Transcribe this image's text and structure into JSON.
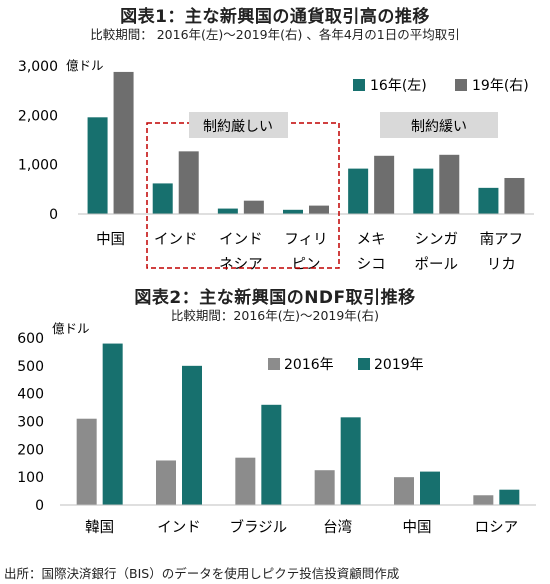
{
  "figure1": {
    "title": "図表1：主な新興国の通貨取引高の推移",
    "subtitle": "比較期間： 2016年(左)～2019年(右) 、各年4月の1日の平均取引",
    "unit": "億ドル",
    "callouts": {
      "strict": "制約厳しい",
      "loose": "制約緩い"
    }
  },
  "figure2": {
    "title": "図表2：主な新興国のNDF取引推移",
    "subtitle": "比較期間：2016年(左)～2019年(右)",
    "unit": "億ドル"
  },
  "source": "出所：国際決済銀行（BIS）のデータを使用しピクテ投信投資顧問作成",
  "colors": {
    "teal": "#17706E",
    "gray": "#8C8C8C",
    "darkgray": "#6E6E6E",
    "callout_bg": "#D9D9D9",
    "callout_border": "#C00000"
  },
  "chart_data": [
    {
      "type": "bar",
      "categories": [
        "中国",
        "インド",
        "インドネシア",
        "フィリピン",
        "メキシコ",
        "シンガポール",
        "南アフリカ"
      ],
      "category_lines": [
        [
          "中国"
        ],
        [
          "インド"
        ],
        [
          "インド",
          "ネシア"
        ],
        [
          "フィリ",
          "ピン"
        ],
        [
          "メキ",
          "シコ"
        ],
        [
          "シンガ",
          "ポール"
        ],
        [
          "南アフ",
          "リカ"
        ]
      ],
      "series": [
        {
          "name": "16年(左)",
          "values": [
            1960,
            620,
            110,
            85,
            920,
            920,
            530
          ],
          "color": "#17706E"
        },
        {
          "name": "19年(右)",
          "values": [
            2880,
            1270,
            270,
            170,
            1180,
            1200,
            730
          ],
          "color": "#6E6E6E"
        }
      ],
      "ylim": [
        0,
        3000
      ],
      "yticks": [
        "0",
        "1,000",
        "2,000",
        "3,000"
      ],
      "ytick_values": [
        0,
        1000,
        2000,
        3000
      ],
      "legend": "top-right"
    },
    {
      "type": "bar",
      "categories": [
        "韓国",
        "インド",
        "ブラジル",
        "台湾",
        "中国",
        "ロシア"
      ],
      "series": [
        {
          "name": "2016年",
          "values": [
            310,
            160,
            170,
            125,
            100,
            35
          ],
          "color": "#8C8C8C"
        },
        {
          "name": "2019年",
          "values": [
            580,
            500,
            360,
            315,
            120,
            55
          ],
          "color": "#17706E"
        }
      ],
      "ylim": [
        0,
        600
      ],
      "yticks": [
        "0",
        "100",
        "200",
        "300",
        "400",
        "500",
        "600"
      ],
      "ytick_values": [
        0,
        100,
        200,
        300,
        400,
        500,
        600
      ],
      "legend": "top-center"
    }
  ]
}
